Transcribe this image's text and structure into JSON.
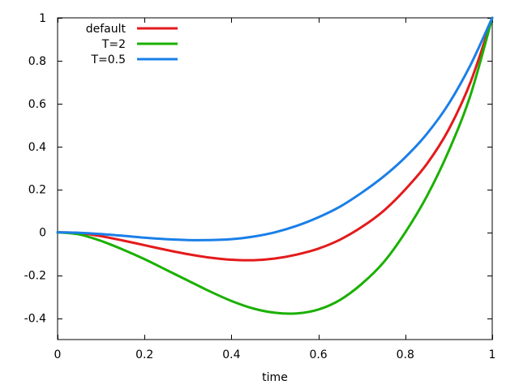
{
  "chart_data": {
    "type": "line",
    "title": "",
    "xlabel": "time",
    "ylabel": "",
    "xlim": [
      0,
      1
    ],
    "ylim": [
      -0.5,
      1
    ],
    "xticks": [
      0,
      0.2,
      0.4,
      0.6,
      0.8,
      1
    ],
    "xtick_labels": [
      "0",
      "0.2",
      "0.4",
      "0.6",
      "0.8",
      "1"
    ],
    "yticks": [
      -0.4,
      -0.2,
      0,
      0.2,
      0.4,
      0.6,
      0.8,
      1
    ],
    "ytick_labels": [
      "-0.4",
      "-0.2",
      "0",
      "0.2",
      "0.4",
      "0.6",
      "0.8",
      "1"
    ],
    "grid": false,
    "legend_position": "top-left",
    "x": [
      0,
      0.05,
      0.1,
      0.15,
      0.2,
      0.25,
      0.3,
      0.35,
      0.4,
      0.45,
      0.5,
      0.55,
      0.6,
      0.65,
      0.7,
      0.75,
      0.8,
      0.85,
      0.9,
      0.95,
      1
    ],
    "series": [
      {
        "name": "default",
        "color": "#e41a1c",
        "values": [
          0,
          -0.003,
          -0.018,
          -0.038,
          -0.06,
          -0.082,
          -0.102,
          -0.118,
          -0.128,
          -0.13,
          -0.122,
          -0.104,
          -0.076,
          -0.034,
          0.025,
          0.1,
          0.2,
          0.32,
          0.48,
          0.7,
          1.0
        ]
      },
      {
        "name": "T=2",
        "color": "#1ab000",
        "values": [
          0,
          -0.01,
          -0.04,
          -0.08,
          -0.125,
          -0.175,
          -0.225,
          -0.275,
          -0.32,
          -0.355,
          -0.375,
          -0.378,
          -0.36,
          -0.315,
          -0.24,
          -0.14,
          0.0,
          0.17,
          0.38,
          0.64,
          1.0
        ]
      },
      {
        "name": "T=0.5",
        "color": "#1a7fe8",
        "values": [
          0,
          -0.002,
          -0.008,
          -0.016,
          -0.025,
          -0.032,
          -0.036,
          -0.036,
          -0.032,
          -0.02,
          0.0,
          0.03,
          0.07,
          0.12,
          0.185,
          0.26,
          0.35,
          0.46,
          0.6,
          0.78,
          1.0
        ]
      }
    ]
  }
}
